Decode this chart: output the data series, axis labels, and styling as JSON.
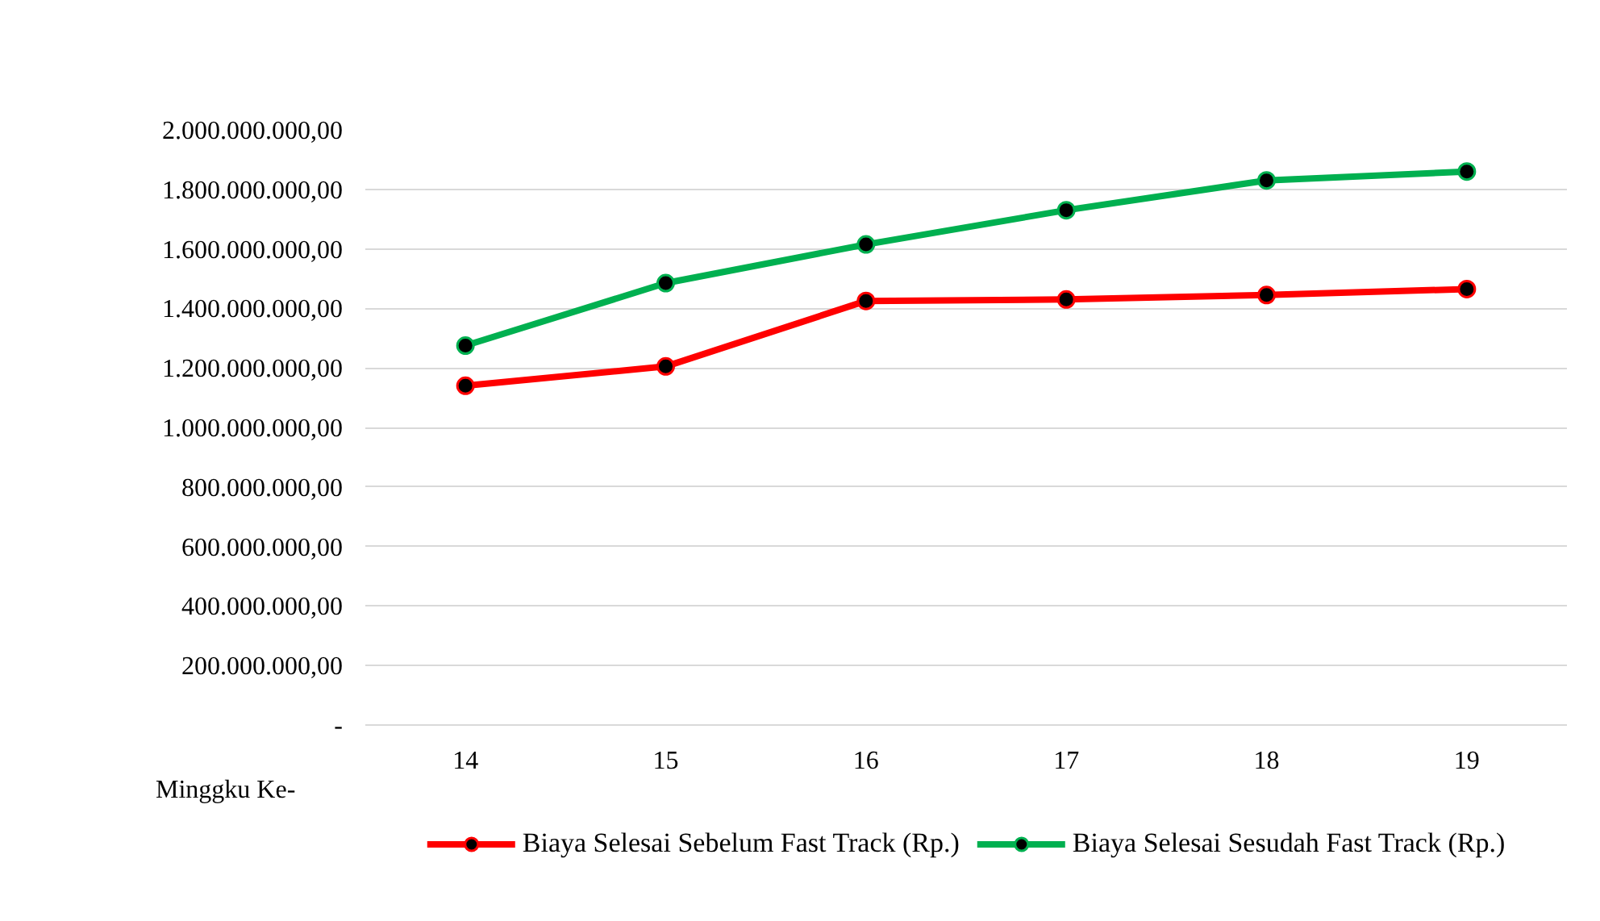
{
  "chart_data": {
    "type": "line",
    "xlabel": "Minggku Ke-",
    "categories": [
      "14",
      "15",
      "16",
      "17",
      "18",
      "19"
    ],
    "series": [
      {
        "name": "Biaya Selesai Sebelum Fast Track (Rp.)",
        "color": "#ff0000",
        "values": [
          1140000000,
          1205000000,
          1425000000,
          1430000000,
          1445000000,
          1465000000
        ]
      },
      {
        "name": "Biaya Selesai Sesudah Fast Track (Rp.)",
        "color": "#00b050",
        "values": [
          1275000000,
          1485000000,
          1615000000,
          1730000000,
          1830000000,
          1860000000
        ]
      }
    ],
    "ylim": [
      0,
      2000000000
    ],
    "yticks": [
      {
        "value": 0,
        "label": "-"
      },
      {
        "value": 200000000,
        "label": "200.000.000,00"
      },
      {
        "value": 400000000,
        "label": "400.000.000,00"
      },
      {
        "value": 600000000,
        "label": "600.000.000,00"
      },
      {
        "value": 800000000,
        "label": "800.000.000,00"
      },
      {
        "value": 1000000000,
        "label": "1.000.000.000,00"
      },
      {
        "value": 1200000000,
        "label": "1.200.000.000,00"
      },
      {
        "value": 1400000000,
        "label": "1.400.000.000,00"
      },
      {
        "value": 1600000000,
        "label": "1.600.000.000,00"
      },
      {
        "value": 1800000000,
        "label": "1.800.000.000,00"
      },
      {
        "value": 2000000000,
        "label": "2.000.000.000,00"
      }
    ],
    "grid": "y",
    "legend": "bottom",
    "marker": "circle",
    "line_style": "solid"
  }
}
